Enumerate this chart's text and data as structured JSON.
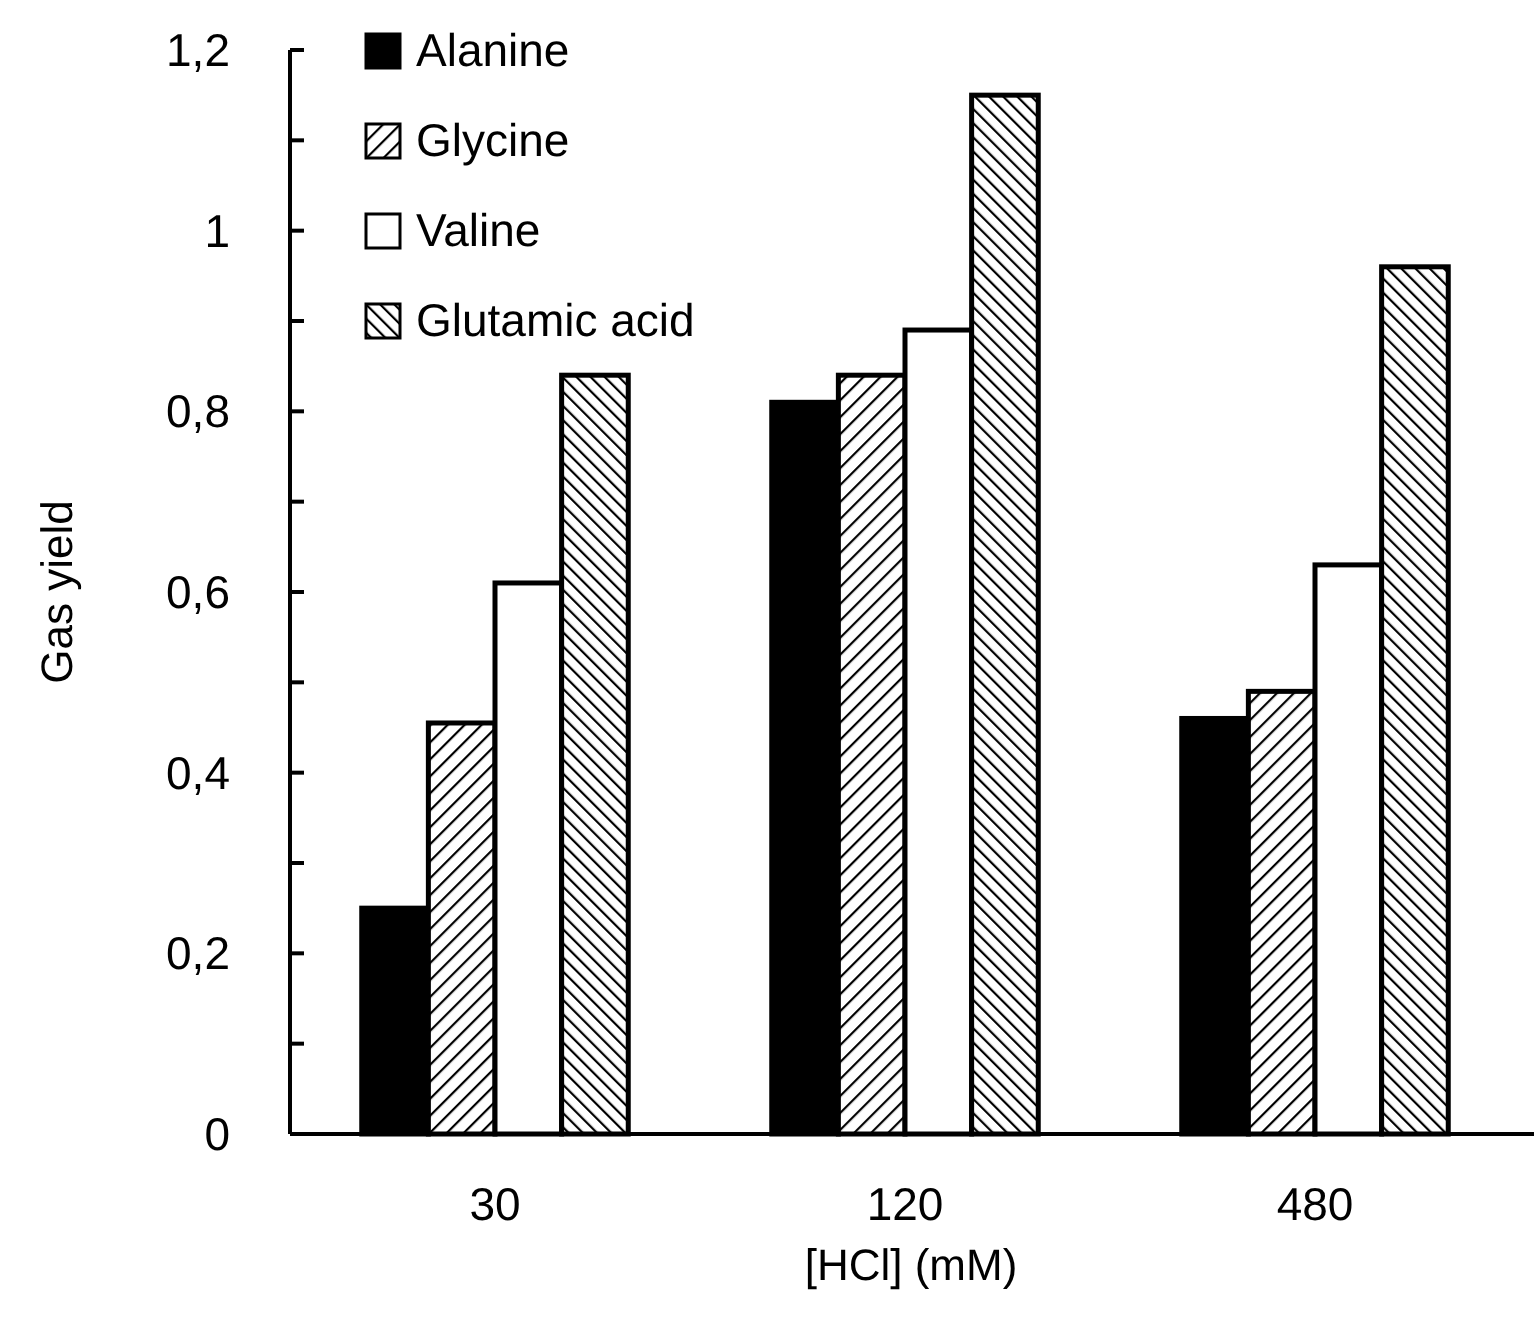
{
  "chart_data": {
    "type": "bar",
    "xlabel": "[HCl] (mM)",
    "ylabel": "Gas yield",
    "categories": [
      "30",
      "120",
      "480"
    ],
    "series": [
      {
        "name": "Alanine",
        "color": "#000000",
        "values": [
          0.25,
          0.81,
          0.46
        ]
      },
      {
        "name": "Glycine",
        "color": "#000000",
        "values": [
          0.455,
          0.84,
          0.49
        ]
      },
      {
        "name": "Valine",
        "color": "#ffffff",
        "values": [
          0.61,
          0.89,
          0.63
        ]
      },
      {
        "name": "Glutamic acid",
        "color": "#000000",
        "values": [
          0.84,
          1.15,
          0.96
        ]
      }
    ],
    "ylim": [
      0,
      1.2
    ],
    "yticks": [
      0,
      {
        "value": 0.1,
        "label": null
      },
      {
        "value": 0.2,
        "label": "0,2"
      },
      {
        "value": 0.3,
        "label": null
      },
      {
        "value": 0.4,
        "label": "0,4"
      },
      {
        "value": 0.5,
        "label": null
      },
      {
        "value": 0.6,
        "label": "0,6"
      },
      {
        "value": 0.7,
        "label": null
      },
      {
        "value": 0.8,
        "label": "0,8"
      },
      {
        "value": 0.9,
        "label": null
      },
      1,
      {
        "value": 1.1,
        "label": null
      },
      {
        "value": 1.2,
        "label": "1,2"
      }
    ],
    "legend": "top left"
  }
}
